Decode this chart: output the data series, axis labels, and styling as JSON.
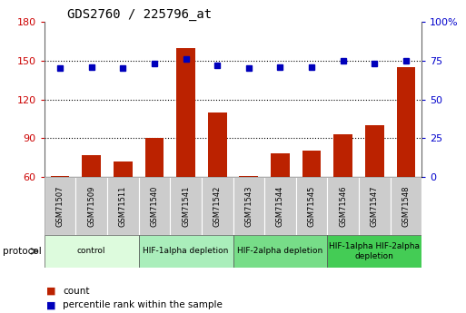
{
  "title": "GDS2760 / 225796_at",
  "samples": [
    "GSM71507",
    "GSM71509",
    "GSM71511",
    "GSM71540",
    "GSM71541",
    "GSM71542",
    "GSM71543",
    "GSM71544",
    "GSM71545",
    "GSM71546",
    "GSM71547",
    "GSM71548"
  ],
  "counts": [
    61,
    77,
    72,
    90,
    160,
    110,
    61,
    78,
    80,
    93,
    100,
    145
  ],
  "percentile_ranks": [
    70,
    71,
    70,
    73,
    76,
    72,
    70,
    71,
    71,
    75,
    73,
    75
  ],
  "ylim_left": [
    60,
    180
  ],
  "ylim_right": [
    0,
    100
  ],
  "yticks_left": [
    60,
    90,
    120,
    150,
    180
  ],
  "yticks_right": [
    0,
    25,
    50,
    75,
    100
  ],
  "bar_color": "#bb2200",
  "dot_color": "#0000bb",
  "grid_color": "#000000",
  "protocol_groups": [
    {
      "label": "control",
      "start": 0,
      "end": 2,
      "color": "#ddfbdd"
    },
    {
      "label": "HIF-1alpha depletion",
      "start": 3,
      "end": 5,
      "color": "#aaeebb"
    },
    {
      "label": "HIF-2alpha depletion",
      "start": 6,
      "end": 8,
      "color": "#77dd88"
    },
    {
      "label": "HIF-1alpha HIF-2alpha\ndepletion",
      "start": 9,
      "end": 11,
      "color": "#44cc55"
    }
  ],
  "legend_count_label": "count",
  "legend_percentile_label": "percentile rank within the sample",
  "protocol_label": "protocol",
  "tick_label_color_left": "#cc0000",
  "tick_label_color_right": "#0000cc",
  "sample_box_color": "#cccccc",
  "plot_bg_color": "#ffffff",
  "fig_bg_color": "#ffffff"
}
